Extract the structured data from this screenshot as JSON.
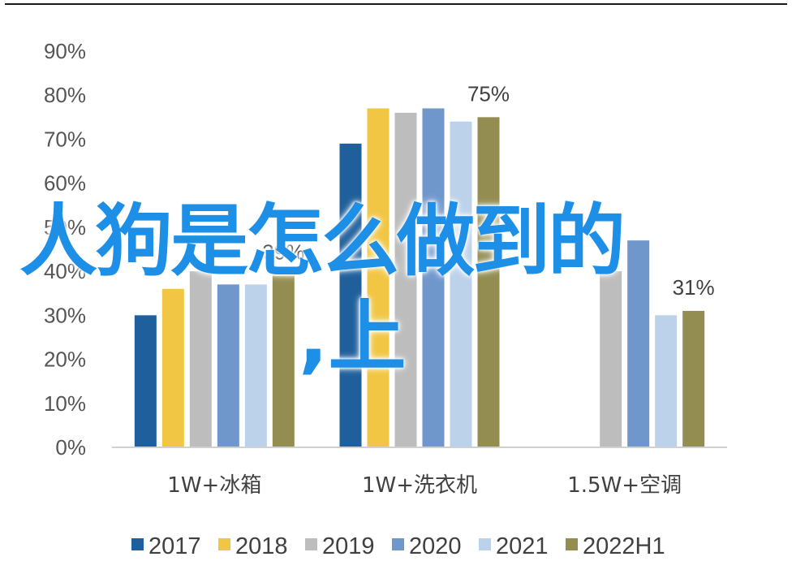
{
  "chart_data": {
    "type": "bar",
    "categories": [
      "1W+冰箱",
      "1W+洗衣机",
      "1.5W+空调"
    ],
    "series": [
      {
        "name": "2017",
        "color": "#1f5f9b",
        "values": [
          30,
          69,
          null
        ]
      },
      {
        "name": "2018",
        "color": "#f1c644",
        "values": [
          36,
          77,
          null
        ]
      },
      {
        "name": "2019",
        "color": "#bdbdbd",
        "values": [
          40,
          76,
          40
        ]
      },
      {
        "name": "2020",
        "color": "#7097cc",
        "values": [
          37,
          77,
          47
        ]
      },
      {
        "name": "2021",
        "color": "#bcd1ea",
        "values": [
          37,
          74,
          30
        ]
      },
      {
        "name": "2022H1",
        "color": "#948d52",
        "values": [
          39,
          75,
          31
        ]
      }
    ],
    "y_ticks": [
      "0%",
      "10%",
      "20%",
      "30%",
      "40%",
      "50%",
      "60%",
      "70%",
      "80%",
      "90%"
    ],
    "ylim": [
      0,
      90
    ],
    "data_labels": [
      {
        "category": 0,
        "text": "39%"
      },
      {
        "category": 1,
        "text": "75%"
      },
      {
        "category": 2,
        "text": "31%"
      }
    ],
    "legend_position": "bottom",
    "grid": false
  },
  "overlay": {
    "line1": "人狗是怎么做到的",
    "line2": ",上"
  }
}
